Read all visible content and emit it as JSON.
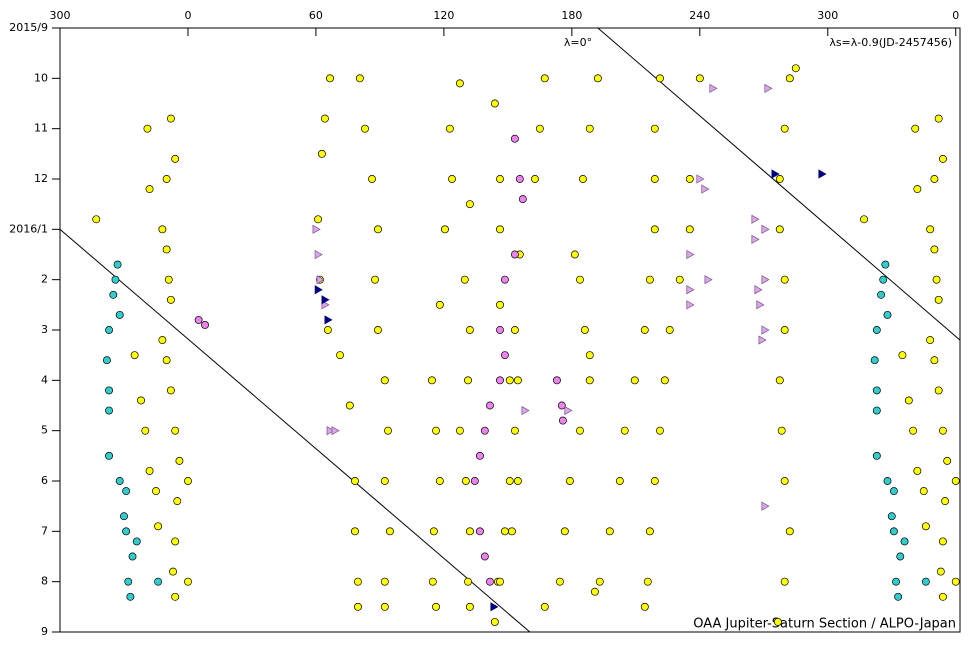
{
  "chart_data": {
    "type": "scatter",
    "annotations": [
      "λ=0°",
      "λs=λ-0.9(JD-2457456)",
      "OAA Jupiter-Saturn Section / ALPO-Japan"
    ],
    "xlim": [
      -60,
      362
    ],
    "ylim": [
      12,
      0
    ],
    "xticks": [
      {
        "value": -60,
        "label": "300"
      },
      0,
      60,
      120,
      180,
      240,
      300,
      {
        "value": 360,
        "label": "0"
      }
    ],
    "yticks": [
      {
        "value": 0,
        "label": "2015/9"
      },
      {
        "value": 1,
        "label": "10"
      },
      {
        "value": 2,
        "label": "11"
      },
      {
        "value": 3,
        "label": "12"
      },
      {
        "value": 4,
        "label": "2016/1"
      },
      {
        "value": 5,
        "label": "2"
      },
      {
        "value": 6,
        "label": "3"
      },
      {
        "value": 7,
        "label": "4"
      },
      {
        "value": 8,
        "label": "5"
      },
      {
        "value": 9,
        "label": "6"
      },
      {
        "value": 10,
        "label": "7"
      },
      {
        "value": 11,
        "label": "8"
      },
      {
        "value": 12,
        "label": "9"
      }
    ],
    "reference_lines": [
      {
        "x": [
          -60,
          160.3
        ],
        "y": [
          4,
          12
        ]
      },
      {
        "x": [
          192.2,
          362
        ],
        "y": [
          0,
          6.2
        ]
      }
    ],
    "series": [
      {
        "color": "#ffff00",
        "marker": "circle",
        "x": [
          -8,
          -6,
          -10,
          -12,
          -10,
          -9,
          -8,
          -12,
          -10,
          -8,
          -6,
          -4,
          -5,
          -6,
          -7,
          -6,
          -19,
          -18,
          -25,
          -22,
          -20,
          -18,
          -15,
          -14,
          -43,
          0,
          0,
          352,
          354,
          350,
          348,
          350,
          351,
          352,
          348,
          350,
          352,
          354,
          356,
          355,
          354,
          353,
          354,
          341,
          342,
          335,
          338,
          340,
          342,
          345,
          346,
          317,
          360,
          360,
          66.6,
          64.2,
          62.8,
          61,
          61.9,
          65.6,
          71.3,
          75.9,
          78.3,
          78.3,
          79.7,
          79.7,
          80.6,
          83,
          86.3,
          89.1,
          87.7,
          89.1,
          92.3,
          93.8,
          92.3,
          94.7,
          92.3,
          92.3,
          127.5,
          122.8,
          123.8,
          120.5,
          118.1,
          114.4,
          116.3,
          118.1,
          115.3,
          114.8,
          116.3,
          132.2,
          129.8,
          132.2,
          131.3,
          127.5,
          130.3,
          132.2,
          131.3,
          132.2,
          143.9,
          146.3,
          146.3,
          146.3,
          150.9,
          153.3,
          154.7,
          151.9,
          145.3,
          143.9,
          167.3,
          165,
          162.7,
          155.6,
          153.3,
          154.7,
          150.9,
          148.6,
          146.3,
          192.2,
          188.4,
          185.2,
          181.4,
          183.8,
          186.1,
          188.4,
          188.4,
          183.8,
          179.1,
          176.7,
          174.4,
          167.3,
          221.3,
          218.9,
          218.9,
          218.9,
          216.6,
          214.2,
          209.5,
          204.8,
          202.5,
          197.8,
          193.1,
          190.8,
          240,
          235.3,
          235.3,
          230.6,
          225.9,
          223.6,
          221.3,
          218.9,
          216.6,
          215.6,
          214.2,
          285,
          282.2,
          279.8,
          277.5,
          277.5,
          279.8,
          279.8,
          277.5,
          278.4,
          279.8,
          282.2,
          279.8,
          276.6
        ],
        "values": [
          1.8,
          2.6,
          3.0,
          4.0,
          4.4,
          5.0,
          5.4,
          6.2,
          6.6,
          7.2,
          8.0,
          8.6,
          9.4,
          10.2,
          10.8,
          11.3,
          2.0,
          3.2,
          6.5,
          7.4,
          8.0,
          8.8,
          9.2,
          9.9,
          3.8,
          9.0,
          11.0,
          1.8,
          2.6,
          3.0,
          4.0,
          4.4,
          5.0,
          5.4,
          6.2,
          6.6,
          7.2,
          8.0,
          8.6,
          9.4,
          10.2,
          10.8,
          11.3,
          2.0,
          3.2,
          6.5,
          7.4,
          8.0,
          8.8,
          9.2,
          9.9,
          3.8,
          9.0,
          11.0,
          1.0,
          1.8,
          2.5,
          3.8,
          5.0,
          6.0,
          6.5,
          7.5,
          9.0,
          10.0,
          11.0,
          11.5,
          1.0,
          2.0,
          3.0,
          4.0,
          5.0,
          6.0,
          7.0,
          8.0,
          9.0,
          10.0,
          11.0,
          11.5,
          1.1,
          2.0,
          3.0,
          4.0,
          5.5,
          7.0,
          8.0,
          9.0,
          10.0,
          11.0,
          11.5,
          3.5,
          5.0,
          6.0,
          7.0,
          8.0,
          9.0,
          10.0,
          11.0,
          11.5,
          1.5,
          3.0,
          4.0,
          5.5,
          7.0,
          8.0,
          9.0,
          10.0,
          11.0,
          11.8,
          1.0,
          2.0,
          3.0,
          4.5,
          6.0,
          7.0,
          9.0,
          10.0,
          11.0,
          1.0,
          2.0,
          3.0,
          4.5,
          5.0,
          6.0,
          6.5,
          7.0,
          8.0,
          9.0,
          10.0,
          11.0,
          11.5,
          1.0,
          2.0,
          3.0,
          4.0,
          5.0,
          6.0,
          7.0,
          8.0,
          9.0,
          10.0,
          11.0,
          11.2,
          1.0,
          3.0,
          4.0,
          5.0,
          6.0,
          7.0,
          8.0,
          9.0,
          10.0,
          11.0,
          11.5,
          0.8,
          1.0,
          2.0,
          3.0,
          4.0,
          5.0,
          6.0,
          7.0,
          8.0,
          9.0,
          10.0,
          11.0,
          11.8
        ]
      },
      {
        "color": "#33cccc",
        "marker": "circle",
        "x": [
          -33,
          -34,
          -35,
          -32,
          -37,
          -38,
          -37,
          -37,
          -37,
          -32,
          -29,
          -30,
          -29,
          -26,
          -24,
          -28,
          -27,
          -14,
          327,
          326,
          325,
          328,
          323,
          322,
          323,
          323,
          323,
          328,
          331,
          330,
          331,
          334,
          336,
          332,
          333,
          346
        ],
        "values": [
          4.7,
          5.0,
          5.3,
          5.7,
          6.0,
          6.6,
          7.2,
          7.6,
          8.5,
          9.0,
          9.2,
          9.7,
          10.0,
          10.5,
          10.2,
          11.0,
          11.3,
          11.0,
          4.7,
          5.0,
          5.3,
          5.7,
          6.0,
          6.6,
          7.2,
          7.6,
          8.5,
          9.0,
          9.2,
          9.7,
          10.0,
          10.5,
          10.2,
          11.0,
          11.3,
          11.0
        ]
      },
      {
        "color": "#ee82ee",
        "marker": "circle",
        "x": [
          153.3,
          155.6,
          157,
          153.3,
          148.6,
          146.3,
          148.6,
          146.3,
          141.6,
          139.2,
          136.9,
          134.5,
          136.9,
          139.2,
          141.6,
          173,
          175.3,
          175.8,
          5,
          8
        ],
        "values": [
          2.2,
          3.0,
          3.4,
          4.5,
          5.0,
          6.0,
          6.5,
          7.0,
          7.5,
          8.0,
          8.5,
          9.0,
          10.0,
          10.5,
          11.0,
          7.0,
          7.5,
          7.8,
          5.8,
          5.9
        ]
      },
      {
        "color": "#d9a6e6",
        "marker": "triangle-right",
        "x": [
          60,
          61,
          61.9,
          64.2,
          66.6,
          68.9,
          158,
          178.1,
          246.1,
          271.9,
          240,
          242.3,
          235.3,
          243.8,
          235.3,
          235.3,
          265.8,
          270.5,
          265.8,
          270.5,
          267.2,
          268.1,
          270.5,
          269.1,
          270.5
        ],
        "values": [
          4.0,
          4.5,
          5.0,
          5.5,
          8.0,
          8.0,
          7.6,
          7.6,
          1.2,
          1.2,
          3.0,
          3.2,
          4.5,
          5.0,
          5.2,
          5.5,
          3.8,
          4.0,
          4.2,
          5.0,
          5.2,
          5.5,
          6.0,
          6.2,
          9.5
        ]
      },
      {
        "color": "#000080",
        "marker": "triangle-right",
        "x": [
          61,
          64.2,
          65.6,
          297.2,
          275.2,
          143.4
        ],
        "values": [
          5.2,
          5.4,
          5.8,
          2.9,
          2.9,
          11.5
        ]
      }
    ]
  }
}
